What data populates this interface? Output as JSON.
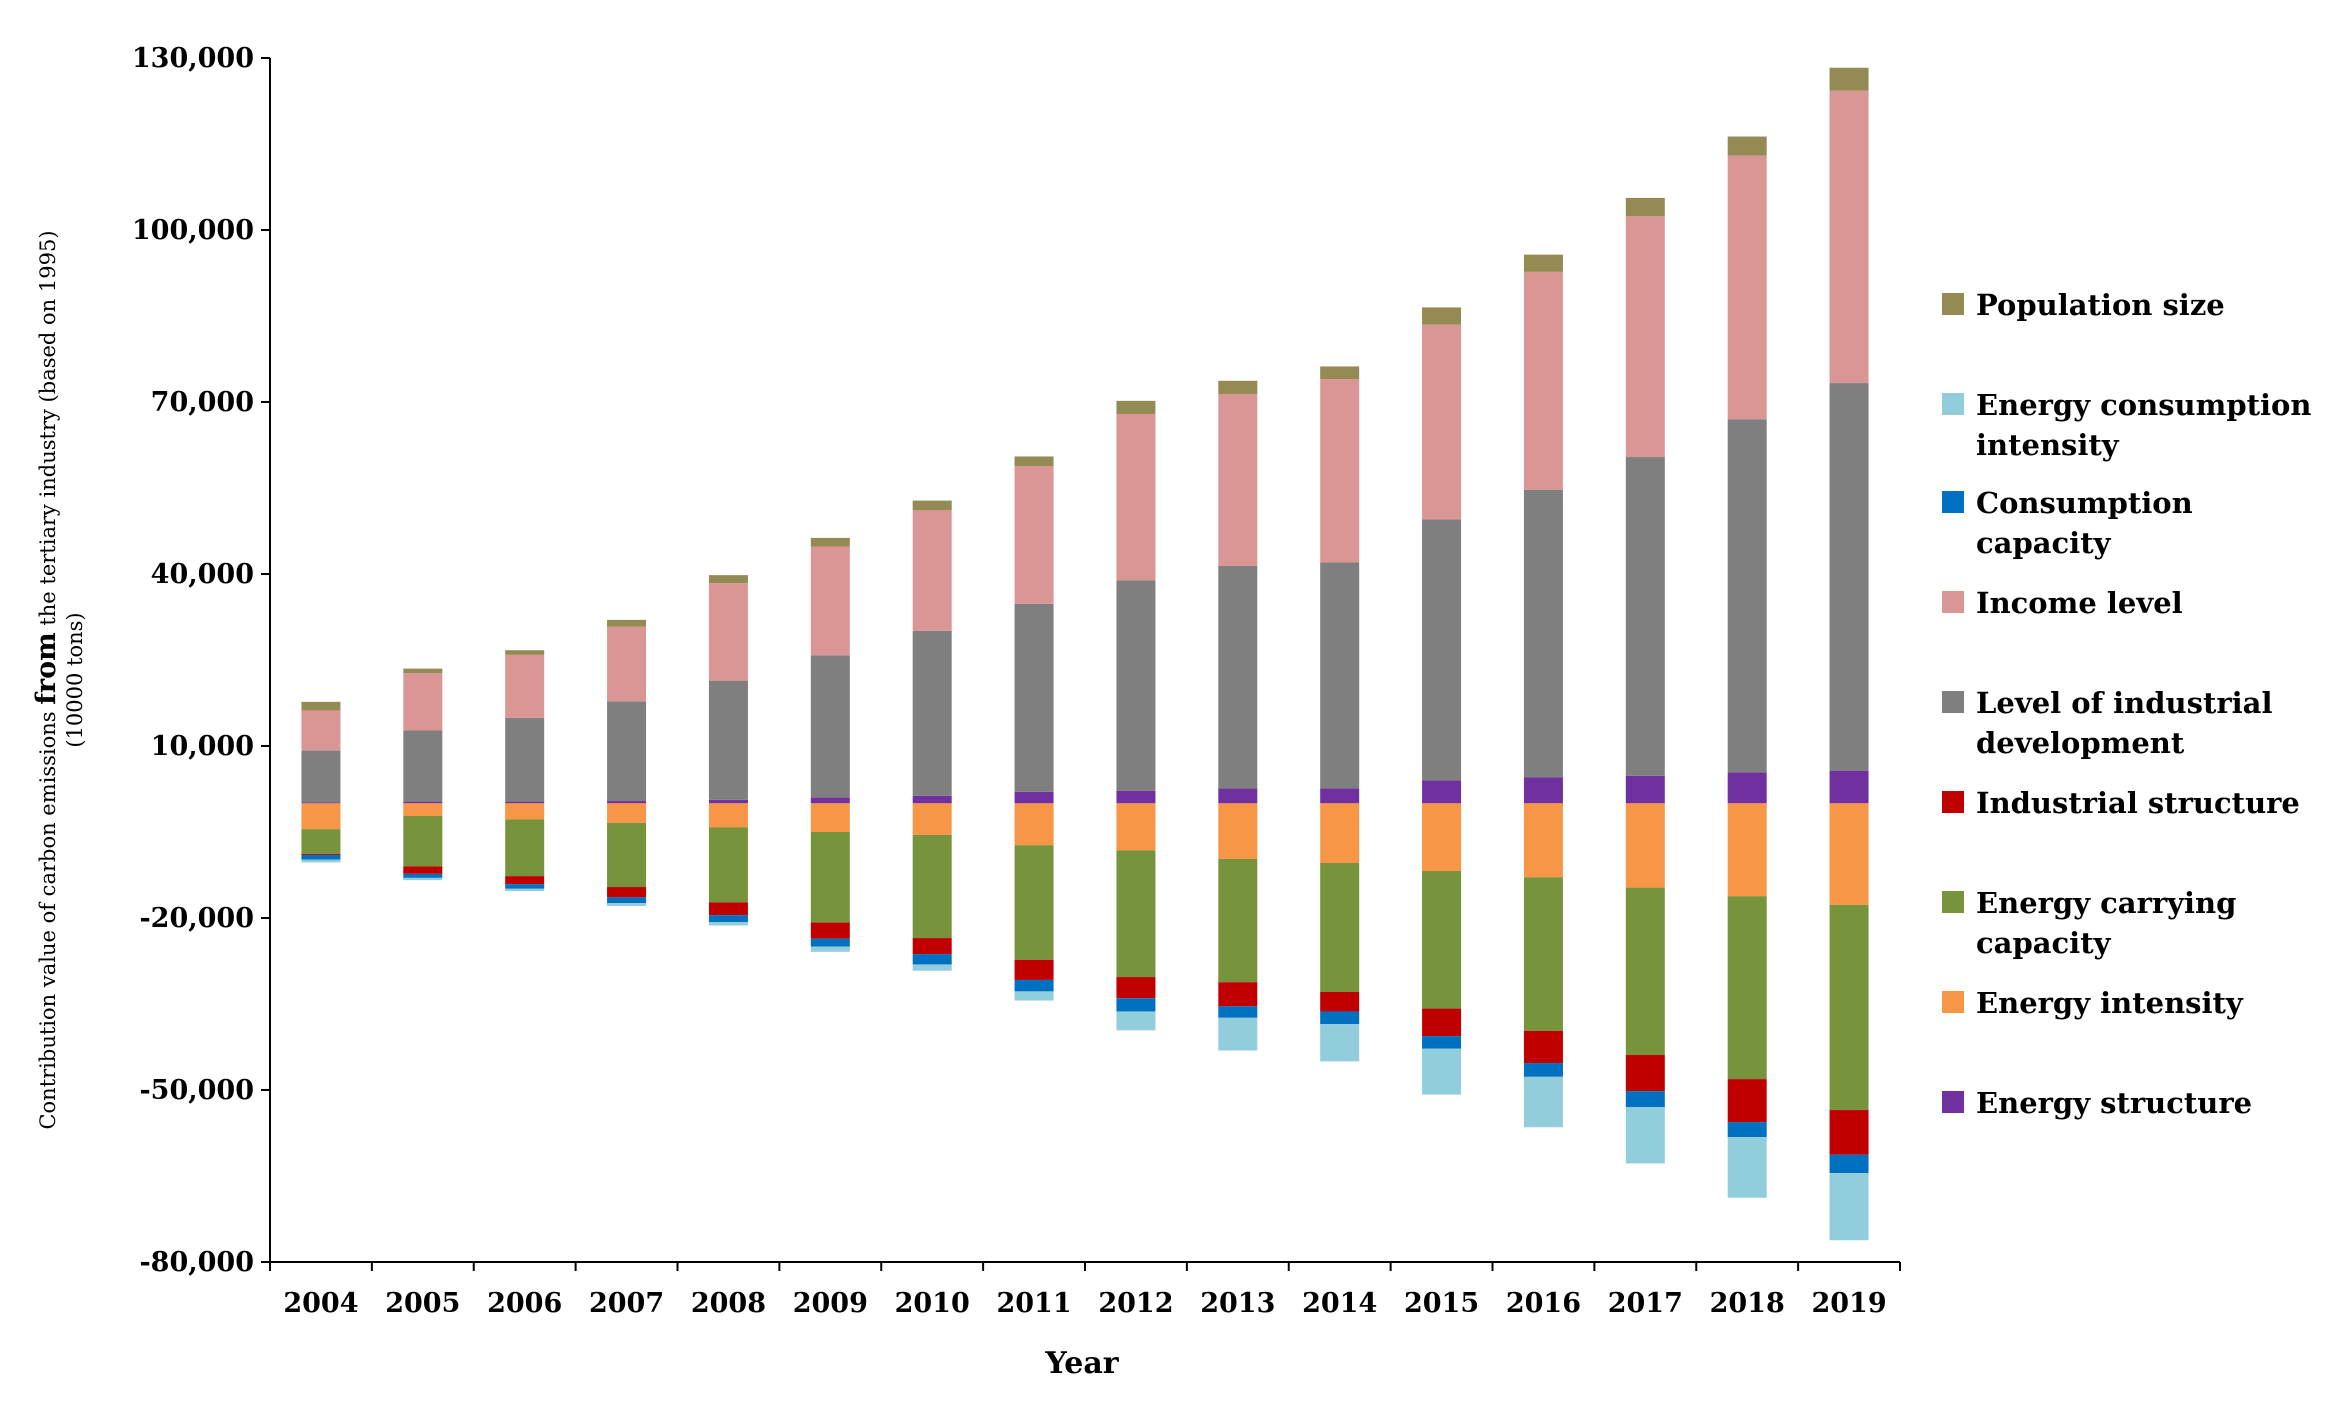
{
  "chart_data": {
    "type": "bar",
    "stacked": true,
    "xlabel": "Year",
    "ylabel_parts": [
      "Contribution value of carbon emissions ",
      "from",
      " the tertiary industry (based on 1995)"
    ],
    "ylabel_unit": "(10000 tons)",
    "ylim": [
      -80000,
      130000
    ],
    "yticks": [
      -80000,
      -50000,
      -20000,
      10000,
      40000,
      70000,
      100000,
      130000
    ],
    "ytick_labels": [
      "-80,000",
      "-50,000",
      "-20,000",
      "10,000",
      "40,000",
      "70,000",
      "100,000",
      "130,000"
    ],
    "categories": [
      "2004",
      "2005",
      "2006",
      "2007",
      "2008",
      "2009",
      "2010",
      "2011",
      "2012",
      "2013",
      "2014",
      "2015",
      "2016",
      "2017",
      "2018",
      "2019"
    ],
    "series": [
      {
        "name": "Energy structure",
        "color": "#7030A0",
        "values": [
          200,
          300,
          300,
          400,
          600,
          1000,
          1300,
          2000,
          2200,
          2600,
          2600,
          4000,
          4500,
          4800,
          5400,
          5700
        ]
      },
      {
        "name": "Level of industrial development",
        "color": "#7F7F7F",
        "values": [
          9000,
          12400,
          14600,
          17400,
          20800,
          24800,
          28800,
          32800,
          36700,
          38800,
          39400,
          45500,
          50200,
          55600,
          61600,
          67600
        ]
      },
      {
        "name": "Income level",
        "color": "#DA9694",
        "values": [
          7000,
          10000,
          11000,
          13000,
          17000,
          19000,
          21000,
          24000,
          29000,
          30000,
          32000,
          34000,
          38000,
          42000,
          46000,
          51000
        ]
      },
      {
        "name": "Population size",
        "color": "#948A54",
        "values": [
          1500,
          800,
          800,
          1200,
          1400,
          1500,
          1700,
          1700,
          2300,
          2300,
          2200,
          3000,
          3000,
          3200,
          3300,
          4000
        ]
      },
      {
        "name": "Energy intensity",
        "color": "#F79646",
        "values": [
          -4500,
          -2200,
          -2800,
          -3400,
          -4200,
          -5000,
          -5500,
          -7300,
          -8200,
          -9700,
          -10400,
          -11800,
          -12900,
          -14700,
          -16200,
          -17700
        ]
      },
      {
        "name": "Energy carrying capacity",
        "color": "#77933C",
        "values": [
          -4300,
          -8800,
          -9900,
          -11200,
          -13100,
          -15800,
          -18000,
          -20000,
          -22100,
          -21500,
          -22500,
          -24000,
          -26800,
          -29200,
          -31900,
          -35800
        ]
      },
      {
        "name": "Industrial structure",
        "color": "#C00000",
        "values": [
          -200,
          -1300,
          -1400,
          -1800,
          -2200,
          -2800,
          -2800,
          -3500,
          -3700,
          -4200,
          -3400,
          -4800,
          -5600,
          -6300,
          -7500,
          -7800
        ]
      },
      {
        "name": "Consumption capacity",
        "color": "#0070C0",
        "values": [
          -800,
          -700,
          -800,
          -1000,
          -1200,
          -1400,
          -1800,
          -2000,
          -2300,
          -2000,
          -2200,
          -2200,
          -2400,
          -2800,
          -2600,
          -3200
        ]
      },
      {
        "name": "Energy consumption intensity",
        "color": "#92CDDC",
        "values": [
          -500,
          -400,
          -400,
          -500,
          -600,
          -900,
          -1100,
          -1600,
          -3300,
          -5700,
          -6500,
          -8000,
          -8800,
          -9800,
          -10600,
          -11700
        ]
      }
    ],
    "legend": [
      {
        "name": "Population size",
        "lines": [
          "Population size"
        ],
        "color": "#948A54"
      },
      {
        "name": "Energy consumption intensity",
        "lines": [
          "Energy consumption",
          "intensity"
        ],
        "color": "#92CDDC"
      },
      {
        "name": "Consumption capacity",
        "lines": [
          "Consumption",
          "capacity"
        ],
        "color": "#0070C0"
      },
      {
        "name": "Income level",
        "lines": [
          "Income level"
        ],
        "color": "#DA9694"
      },
      {
        "name": "Level of industrial development",
        "lines": [
          "Level of industrial",
          "development"
        ],
        "color": "#7F7F7F"
      },
      {
        "name": "Industrial structure",
        "lines": [
          "Industrial structure"
        ],
        "color": "#C00000"
      },
      {
        "name": "Energy carrying capacity",
        "lines": [
          "Energy carrying",
          "capacity"
        ],
        "color": "#77933C"
      },
      {
        "name": "Energy intensity",
        "lines": [
          "Energy intensity"
        ],
        "color": "#F79646"
      },
      {
        "name": "Energy structure",
        "lines": [
          "Energy structure"
        ],
        "color": "#7030A0"
      }
    ],
    "legend_position": "right",
    "grid": false
  }
}
